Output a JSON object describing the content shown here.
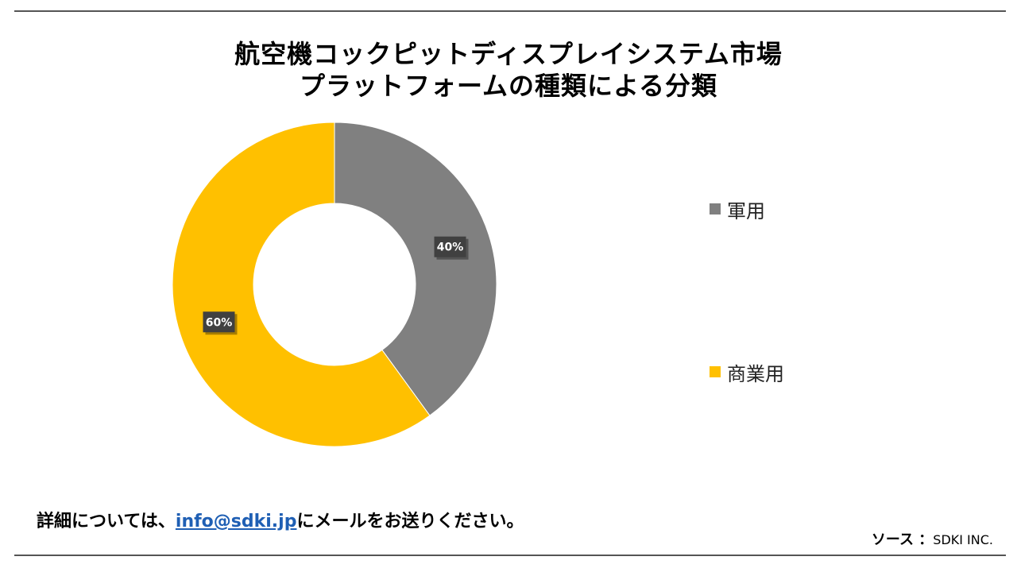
{
  "title_line1": "航空機コックピットディスプレイシステム市場",
  "title_line2": "プラットフォームの種類による分類",
  "chart_data": {
    "type": "pie",
    "donut": true,
    "categories": [
      "軍用",
      "商業用"
    ],
    "values": [
      40,
      60
    ],
    "data_labels": [
      "40%",
      "60%"
    ],
    "colors": [
      "#808080",
      "#ffc000"
    ],
    "legend": "right"
  },
  "footer": {
    "prefix": "詳細については、",
    "link": "info@sdki.jp",
    "suffix": "にメールをお送りください。"
  },
  "source": {
    "key": "ソース ：",
    "value": "SDKI INC."
  }
}
